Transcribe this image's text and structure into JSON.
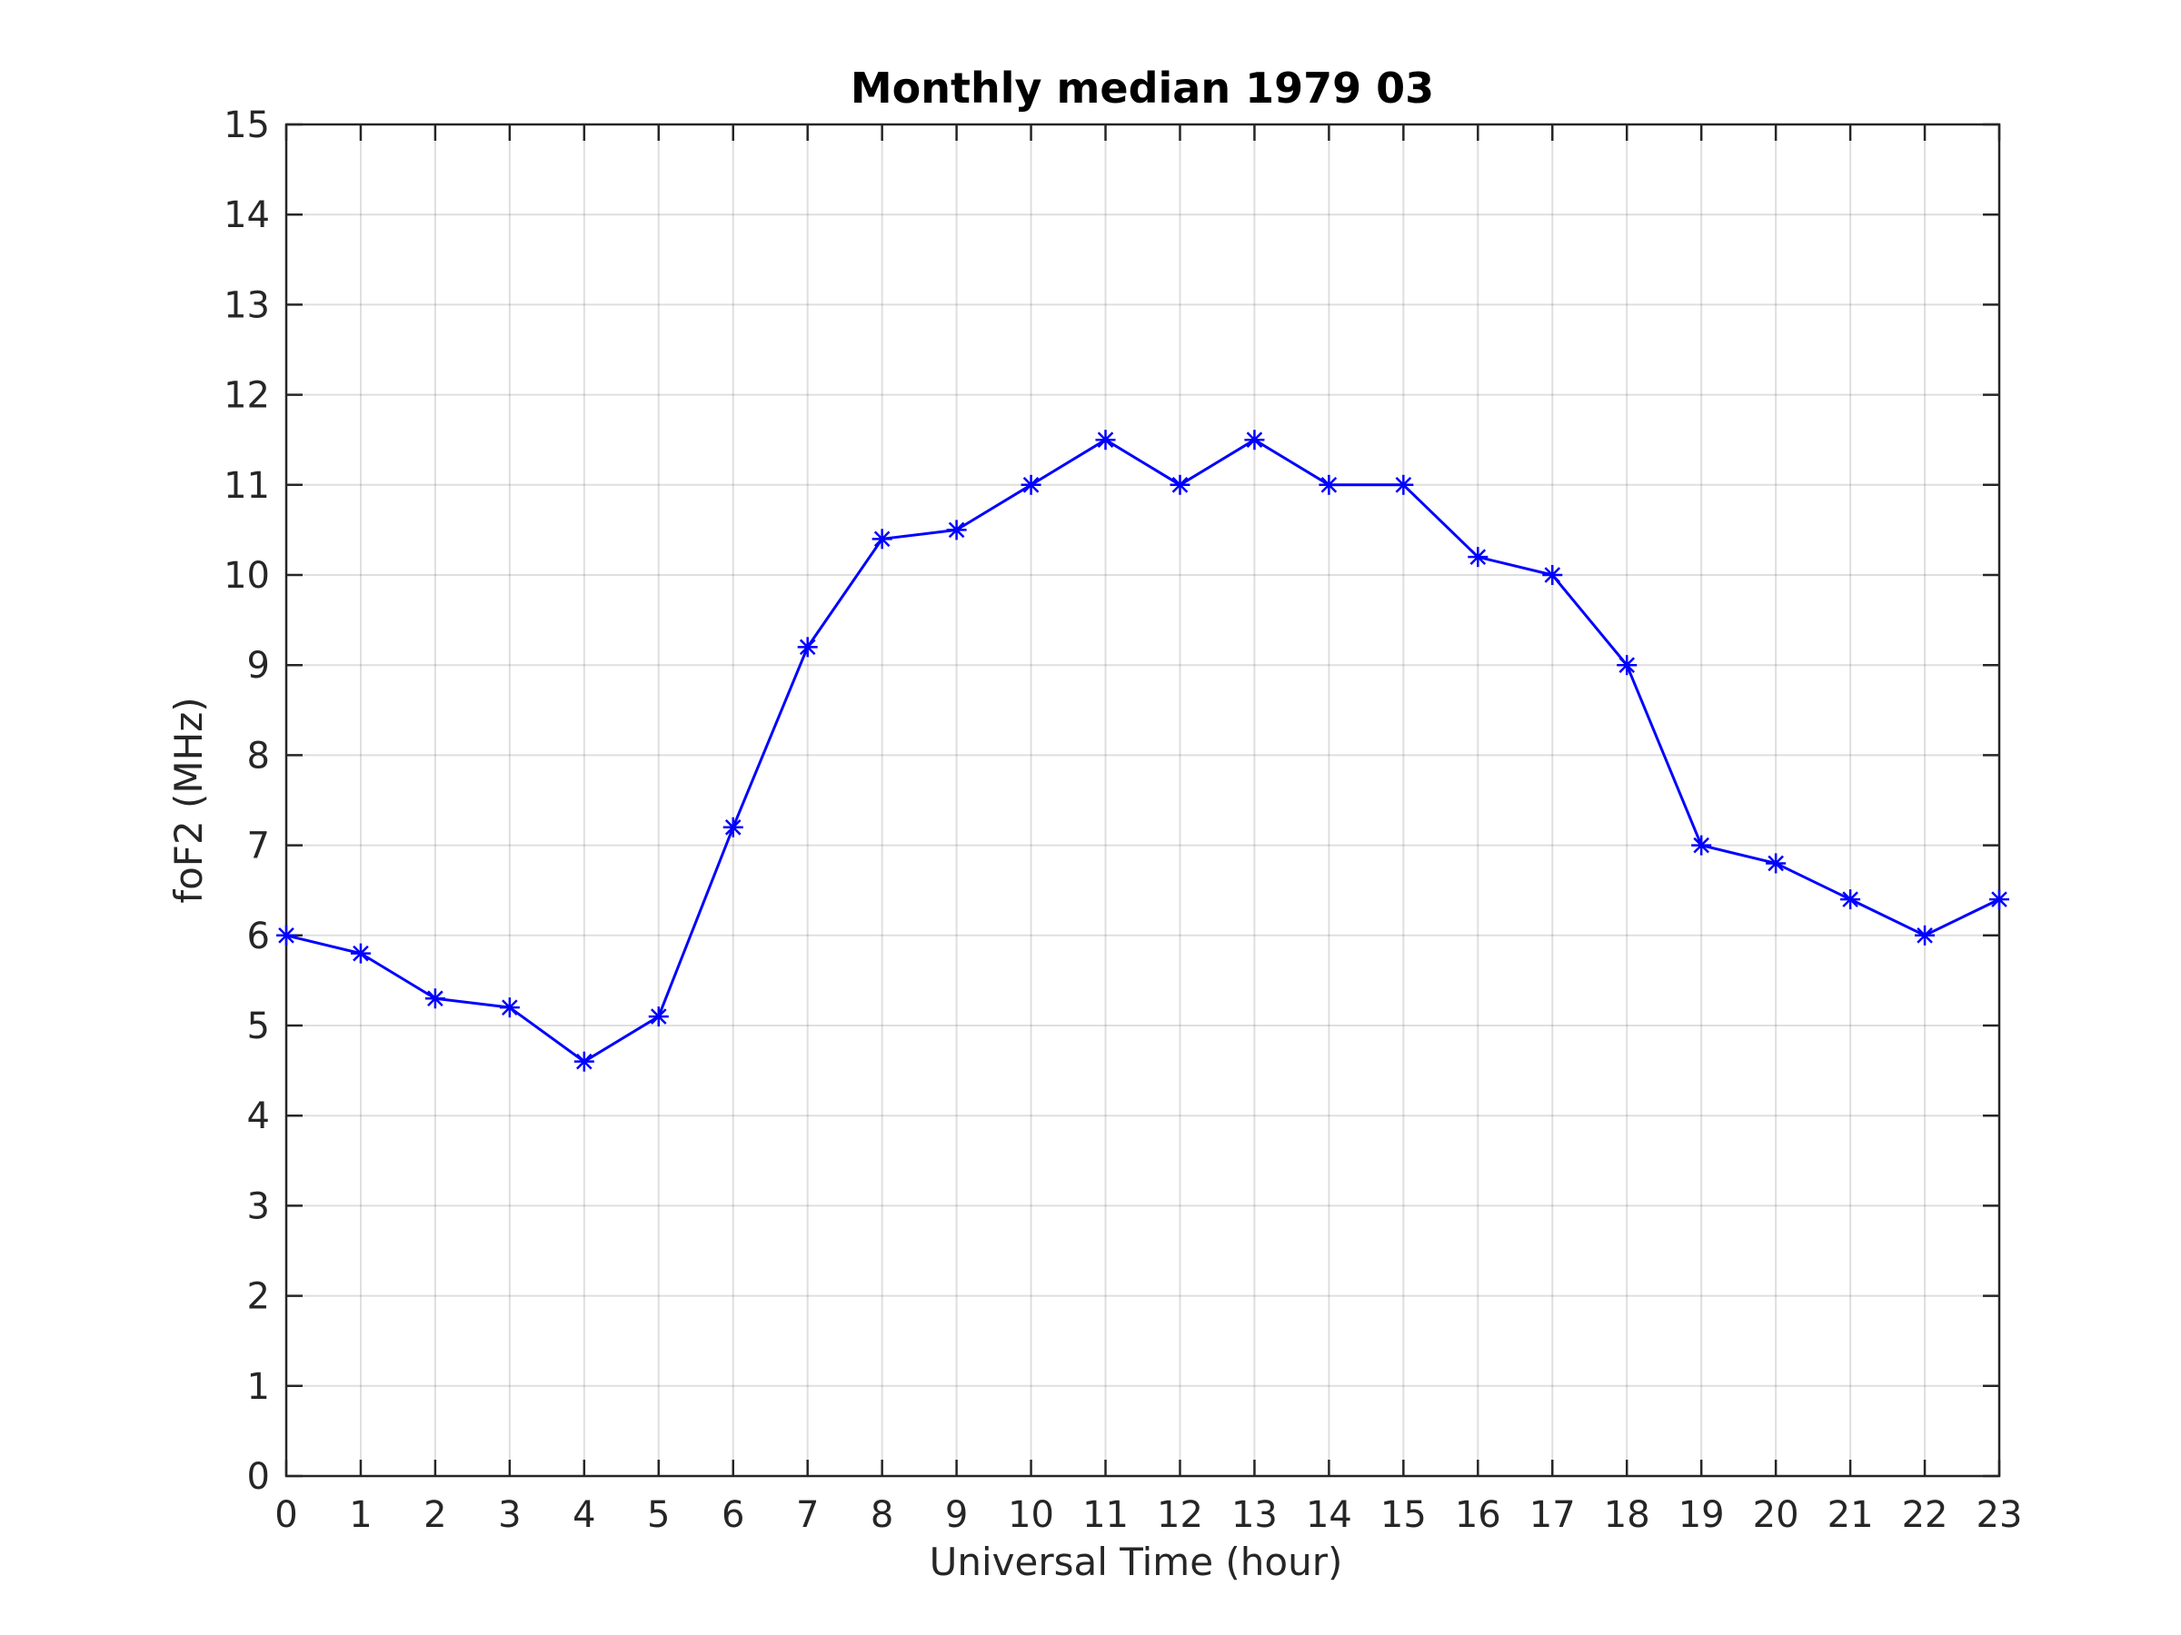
{
  "chart_data": {
    "type": "line",
    "title": "Monthly median 1979 03",
    "xlabel": "Universal Time (hour)",
    "ylabel": "foF2 (MHz)",
    "xlim": [
      0,
      23
    ],
    "ylim": [
      0,
      15
    ],
    "xticks": [
      0,
      1,
      2,
      3,
      4,
      5,
      6,
      7,
      8,
      9,
      10,
      11,
      12,
      13,
      14,
      15,
      16,
      17,
      18,
      19,
      20,
      21,
      22,
      23
    ],
    "yticks": [
      0,
      1,
      2,
      3,
      4,
      5,
      6,
      7,
      8,
      9,
      10,
      11,
      12,
      13,
      14,
      15
    ],
    "grid": true,
    "series": [
      {
        "color": "#0000ff",
        "marker": "asterisk",
        "x": [
          0,
          1,
          2,
          3,
          4,
          5,
          6,
          7,
          8,
          9,
          10,
          11,
          12,
          13,
          14,
          15,
          16,
          17,
          18,
          19,
          20,
          21,
          22,
          23
        ],
        "y": [
          6.0,
          5.8,
          5.3,
          5.2,
          4.6,
          5.1,
          7.2,
          9.2,
          10.4,
          10.5,
          11.0,
          11.5,
          11.0,
          11.5,
          11.0,
          11.0,
          10.2,
          10.0,
          9.0,
          7.0,
          6.8,
          6.4,
          6.0,
          6.4
        ]
      }
    ]
  }
}
